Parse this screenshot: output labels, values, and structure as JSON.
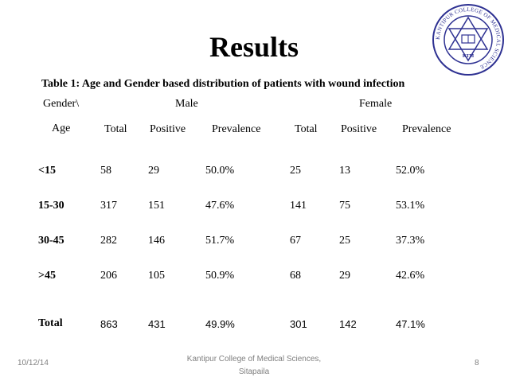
{
  "slide": {
    "title": "Results",
    "caption": "Table 1: Age and Gender based distribution of patients with wound infection"
  },
  "table": {
    "header_gender": "Gender\\",
    "header_male": "Male",
    "header_female": "Female",
    "header_age": "Age",
    "subheaders": [
      "Total",
      "Positive",
      "Prevalence",
      "Total",
      "Positive",
      "Prevalence"
    ],
    "rows": [
      {
        "age": "<15",
        "cells": [
          "58",
          "29",
          "50.0%",
          "25",
          "13",
          "52.0%"
        ]
      },
      {
        "age": "15-30",
        "cells": [
          "317",
          "151",
          "47.6%",
          "141",
          "75",
          "53.1%"
        ]
      },
      {
        "age": "30-45",
        "cells": [
          "282",
          "146",
          "51.7%",
          "67",
          "25",
          "37.3%"
        ]
      },
      {
        "age": ">45",
        "cells": [
          "206",
          "105",
          "50.9%",
          "68",
          "29",
          "42.6%"
        ]
      }
    ],
    "total": {
      "label": "Total",
      "cells": [
        "863",
        "431",
        "49.9%",
        "301",
        "142",
        "47.1%"
      ]
    }
  },
  "footer": {
    "date": "10/12/14",
    "institution_line1": "Kantipur College of Medical Sciences,",
    "institution_line2": "Sitapaila",
    "page_number": "8"
  },
  "logo": {
    "ring_text": "KANTIPUR COLLEGE OF MEDICAL SCIENCE",
    "center_text": "KTM",
    "color": "#2e3192"
  }
}
